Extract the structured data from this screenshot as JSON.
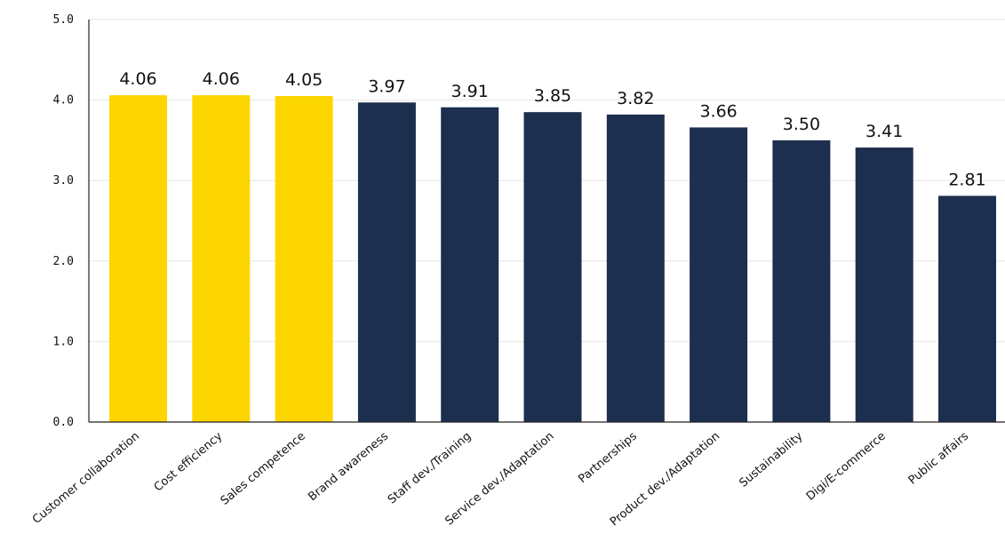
{
  "chart_data": {
    "type": "bar",
    "categories": [
      "Customer collaboration",
      "Cost efficiency",
      "Sales competence",
      "Brand awareness",
      "Staff dev./Training",
      "Service dev./Adaptation",
      "Partnerships",
      "Product dev./Adaptation",
      "Sustainability",
      "Digi/E-commerce",
      "Public affairs"
    ],
    "values": [
      4.06,
      4.06,
      4.05,
      3.97,
      3.91,
      3.85,
      3.82,
      3.66,
      3.5,
      3.41,
      2.81
    ],
    "value_labels": [
      "4.06",
      "4.06",
      "4.05",
      "3.97",
      "3.91",
      "3.85",
      "3.82",
      "3.66",
      "3.50",
      "3.41",
      "2.81"
    ],
    "highlighted": [
      true,
      true,
      true,
      false,
      false,
      false,
      false,
      false,
      false,
      false,
      false
    ],
    "y_ticks": [
      "0.0",
      "1.0",
      "2.0",
      "3.0",
      "4.0",
      "5.0"
    ],
    "ylim": [
      0,
      5
    ],
    "title": "",
    "xlabel": "",
    "ylabel": "",
    "grid": true,
    "colors": {
      "highlight": "#FDD600",
      "default": "#1D2F4F"
    }
  }
}
